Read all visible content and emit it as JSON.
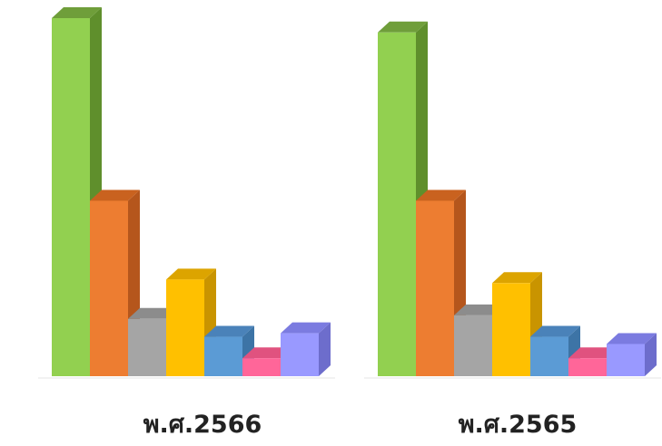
{
  "chart_data": {
    "type": "bar",
    "style": "3d-clustered-columns",
    "axes_visible": false,
    "grid": false,
    "legend": "none",
    "value_labels": false,
    "ylim": [
      0,
      100
    ],
    "groups": [
      {
        "label": "พ.ศ.2566",
        "values": [
          100,
          49,
          16,
          27,
          11,
          5,
          12
        ]
      },
      {
        "label": "พ.ศ.2565",
        "values": [
          96,
          49,
          17,
          26,
          11,
          5,
          9
        ]
      }
    ],
    "bar_colors": [
      {
        "front": "#92d050",
        "side": "#5f8f2c",
        "top": "#6f9e3a"
      },
      {
        "front": "#ed7d31",
        "side": "#b5561c",
        "top": "#c9621f"
      },
      {
        "front": "#a5a5a5",
        "side": "#7b7b7b",
        "top": "#8c8c8c"
      },
      {
        "front": "#ffc000",
        "side": "#c99400",
        "top": "#dca400"
      },
      {
        "front": "#5b9bd5",
        "side": "#3d74a6",
        "top": "#4a82b9"
      },
      {
        "front": "#ff6699",
        "side": "#c94775",
        "top": "#e0527f"
      },
      {
        "front": "#9999ff",
        "side": "#6d6dcc",
        "top": "#7b7be0"
      }
    ]
  }
}
